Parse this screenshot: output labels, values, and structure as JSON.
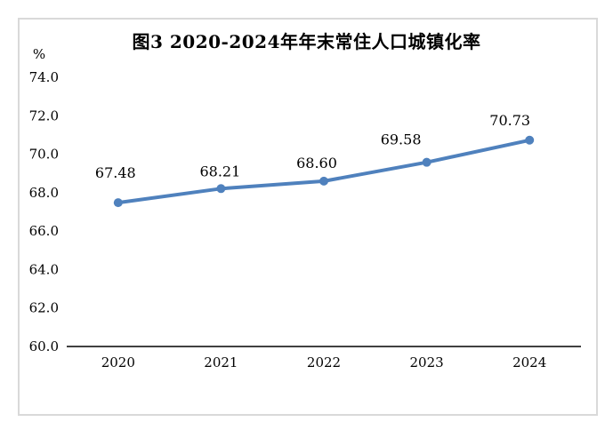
{
  "chart_data": {
    "type": "line",
    "title": "图3 2020-2024年年末常住人口城镇化率",
    "unit_label": "%",
    "categories": [
      "2020",
      "2021",
      "2022",
      "2023",
      "2024"
    ],
    "values": [
      67.48,
      68.21,
      68.6,
      69.58,
      70.73
    ],
    "data_labels": [
      "67.48",
      "68.21",
      "68.60",
      "69.58",
      "70.73"
    ],
    "ytick_labels": [
      "60.0",
      "62.0",
      "64.0",
      "66.0",
      "68.0",
      "70.0",
      "72.0",
      "74.0"
    ],
    "ylim": [
      60.0,
      74.0
    ],
    "xlabel": "",
    "ylabel": "%",
    "grid": false,
    "legend": "none",
    "line_color": "#4F81BD",
    "axis_color": "#000000",
    "text_color": "#000000",
    "border_color": "#d9d9d9",
    "background_color": "#ffffff"
  }
}
